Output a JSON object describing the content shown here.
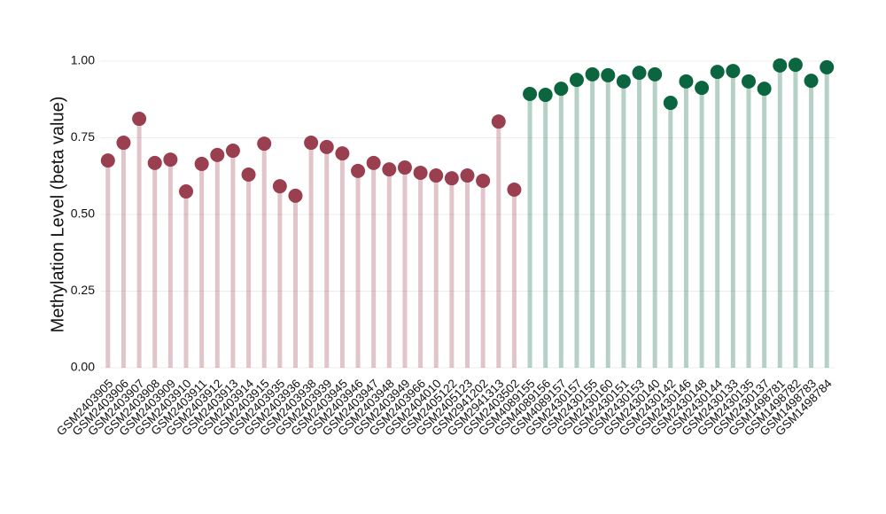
{
  "chart_data": {
    "type": "lollipop",
    "y_label": "Methylation Level (beta value)",
    "categories": [
      "GSM2403905",
      "GSM2403906",
      "GSM2403907",
      "GSM2403908",
      "GSM2403909",
      "GSM2403910",
      "GSM2403911",
      "GSM2403912",
      "GSM2403913",
      "GSM2403914",
      "GSM2403915",
      "GSM2403935",
      "GSM2403936",
      "GSM2403938",
      "GSM2403939",
      "GSM2403945",
      "GSM2403946",
      "GSM2403947",
      "GSM2403948",
      "GSM2403949",
      "GSM2403966",
      "GSM2404010",
      "GSM2405122",
      "GSM2405123",
      "GSM2941202",
      "GSM2941313",
      "GSM2403502",
      "GSM4089155",
      "GSM4089156",
      "GSM4089157",
      "GSM2430157",
      "GSM2430155",
      "GSM2430160",
      "GSM2430151",
      "GSM2430153",
      "GSM2430140",
      "GSM2430142",
      "GSM2430146",
      "GSM2430148",
      "GSM2430144",
      "GSM2430133",
      "GSM2430135",
      "GSM2430137",
      "GSM1498781",
      "GSM1498782",
      "GSM1498783",
      "GSM1498784"
    ],
    "values": [
      0.676,
      0.734,
      0.812,
      0.668,
      0.679,
      0.575,
      0.665,
      0.694,
      0.708,
      0.63,
      0.731,
      0.592,
      0.561,
      0.734,
      0.72,
      0.699,
      0.642,
      0.668,
      0.647,
      0.653,
      0.636,
      0.627,
      0.618,
      0.627,
      0.61,
      0.803,
      0.581,
      0.893,
      0.89,
      0.91,
      0.939,
      0.957,
      0.954,
      0.934,
      0.962,
      0.957,
      0.864,
      0.934,
      0.913,
      0.965,
      0.968,
      0.934,
      0.91,
      0.986,
      0.988,
      0.936,
      0.98
    ],
    "colors": [
      "#9a3f4f",
      "#9a3f4f",
      "#9a3f4f",
      "#9a3f4f",
      "#9a3f4f",
      "#9a3f4f",
      "#9a3f4f",
      "#9a3f4f",
      "#9a3f4f",
      "#9a3f4f",
      "#9a3f4f",
      "#9a3f4f",
      "#9a3f4f",
      "#9a3f4f",
      "#9a3f4f",
      "#9a3f4f",
      "#9a3f4f",
      "#9a3f4f",
      "#9a3f4f",
      "#9a3f4f",
      "#9a3f4f",
      "#9a3f4f",
      "#9a3f4f",
      "#9a3f4f",
      "#9a3f4f",
      "#9a3f4f",
      "#9a3f4f",
      "#0b6640",
      "#0b6640",
      "#0b6640",
      "#0b6640",
      "#0b6640",
      "#0b6640",
      "#0b6640",
      "#0b6640",
      "#0b6640",
      "#0b6640",
      "#0b6640",
      "#0b6640",
      "#0b6640",
      "#0b6640",
      "#0b6640",
      "#0b6640",
      "#0b6640",
      "#0b6640",
      "#0b6640",
      "#0b6640"
    ],
    "ylim": [
      0,
      1
    ],
    "yticks": [
      {
        "value": 0,
        "label": "0.00"
      },
      {
        "value": 0.25,
        "label": "0.25"
      },
      {
        "value": 0.5,
        "label": "0.50"
      },
      {
        "value": 0.75,
        "label": "0.75"
      },
      {
        "value": 1,
        "label": "1.00"
      }
    ],
    "grid": true
  }
}
